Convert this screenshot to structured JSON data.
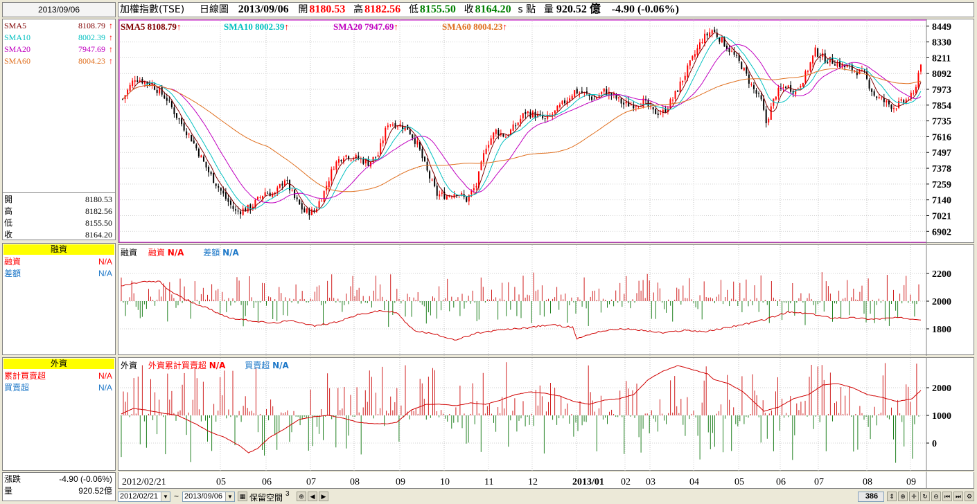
{
  "date_box": "2013/09/06",
  "header": {
    "title": "加權指數(TSE)",
    "period": "日線圖",
    "date": "2013/09/06",
    "open_label": "開",
    "open": "8180.53",
    "high_label": "高",
    "high": "8182.56",
    "low_label": "低",
    "low": "8155.50",
    "close_label": "收",
    "close": "8164.20",
    "unit": "s 點",
    "volume_label": "量",
    "volume": "920.52 億",
    "change": "-4.90 (-0.06%)"
  },
  "sma_legend": [
    {
      "name": "SMA5",
      "value": "8108.79",
      "color": "#800000"
    },
    {
      "name": "SMA10",
      "value": "8002.39",
      "color": "#00c0c0"
    },
    {
      "name": "SMA20",
      "value": "7947.69",
      "color": "#c000c0"
    },
    {
      "name": "SMA60",
      "value": "8004.23",
      "color": "#e07020"
    }
  ],
  "sma_top_labels": [
    {
      "text": "SMA5 8108.79",
      "color": "#800000"
    },
    {
      "text": "SMA10 8002.39",
      "color": "#00c0c0"
    },
    {
      "text": "SMA20 7947.69",
      "color": "#c000c0"
    },
    {
      "text": "SMA60 8004.23",
      "color": "#e07020"
    }
  ],
  "up_arrow": "🡅",
  "ohlc": [
    {
      "label": "開",
      "value": "8180.53"
    },
    {
      "label": "高",
      "value": "8182.56"
    },
    {
      "label": "低",
      "value": "8155.50"
    },
    {
      "label": "收",
      "value": "8164.20"
    }
  ],
  "margin_panel": {
    "title": "融資",
    "rows": [
      {
        "label": "融資",
        "value": "N/A",
        "color": "#ff0000"
      },
      {
        "label": "差額",
        "value": "N/A",
        "color": "#1e78c8"
      }
    ],
    "chart_title": "融資",
    "chart_label1": "融資",
    "chart_label2": "差額",
    "na": "N/A"
  },
  "foreign_panel": {
    "title": "外資",
    "rows": [
      {
        "label": "累計買賣超",
        "value": "N/A",
        "color": "#ff0000"
      },
      {
        "label": "買賣超",
        "value": "N/A",
        "color": "#1e78c8"
      }
    ],
    "chart_title": "外資",
    "chart_label1": "外資累計買賣超",
    "chart_label2": "買賣超",
    "na": "N/A"
  },
  "bottom_info": {
    "change_label": "漲跌",
    "change_value": "-4.90 (-0.06%)",
    "volume_label": "量",
    "volume_value": "920.52億"
  },
  "bottom_bar": {
    "start_date": "2012/02/21",
    "tilde": "~",
    "end_date": "2013/09/06",
    "reserve_label": "保留空間",
    "reserve_value": "3",
    "count": "386"
  },
  "chart_data": [
    {
      "type": "candlestick",
      "name": "price",
      "y_ticks": [
        8449,
        8330,
        8211,
        8092,
        7973,
        7854,
        7735,
        7616,
        7497,
        7378,
        7259,
        7140,
        7021,
        6902
      ],
      "ylim": [
        6820,
        8500
      ],
      "x_tick_labels": [
        "2012/02/21",
        "05",
        "06",
        "07",
        "08",
        "09",
        "10",
        "11",
        "12",
        "2013/01",
        "02",
        "03",
        "04",
        "05",
        "06",
        "07",
        "08",
        "09"
      ],
      "price_anchors": [
        [
          0,
          7900
        ],
        [
          5,
          8060
        ],
        [
          12,
          8010
        ],
        [
          18,
          7900
        ],
        [
          22,
          7770
        ],
        [
          28,
          7600
        ],
        [
          35,
          7350
        ],
        [
          42,
          7150
        ],
        [
          46,
          7050
        ],
        [
          52,
          7080
        ],
        [
          58,
          7200
        ],
        [
          62,
          7180
        ],
        [
          66,
          7300
        ],
        [
          70,
          7150
        ],
        [
          74,
          7050
        ],
        [
          78,
          7050
        ],
        [
          82,
          7200
        ],
        [
          86,
          7400
        ],
        [
          90,
          7480
        ],
        [
          96,
          7450
        ],
        [
          100,
          7420
        ],
        [
          104,
          7480
        ],
        [
          108,
          7720
        ],
        [
          112,
          7710
        ],
        [
          116,
          7680
        ],
        [
          120,
          7560
        ],
        [
          124,
          7350
        ],
        [
          128,
          7180
        ],
        [
          132,
          7170
        ],
        [
          136,
          7200
        ],
        [
          140,
          7140
        ],
        [
          144,
          7250
        ],
        [
          148,
          7550
        ],
        [
          152,
          7660
        ],
        [
          156,
          7620
        ],
        [
          160,
          7700
        ],
        [
          164,
          7800
        ],
        [
          168,
          7780
        ],
        [
          172,
          7740
        ],
        [
          176,
          7800
        ],
        [
          180,
          7880
        ],
        [
          184,
          7960
        ],
        [
          188,
          7940
        ],
        [
          192,
          7900
        ],
        [
          196,
          7960
        ],
        [
          200,
          7920
        ],
        [
          204,
          7860
        ],
        [
          208,
          7860
        ],
        [
          212,
          7880
        ],
        [
          216,
          7800
        ],
        [
          220,
          7800
        ],
        [
          224,
          7900
        ],
        [
          228,
          8050
        ],
        [
          232,
          8200
        ],
        [
          236,
          8350
        ],
        [
          240,
          8420
        ],
        [
          244,
          8340
        ],
        [
          248,
          8250
        ],
        [
          252,
          8150
        ],
        [
          256,
          8000
        ],
        [
          260,
          7880
        ],
        [
          262,
          7720
        ],
        [
          266,
          7940
        ],
        [
          270,
          8000
        ],
        [
          274,
          7960
        ],
        [
          278,
          8080
        ],
        [
          282,
          8260
        ],
        [
          286,
          8200
        ],
        [
          290,
          8180
        ],
        [
          294,
          8140
        ],
        [
          298,
          8120
        ],
        [
          302,
          8080
        ],
        [
          306,
          7930
        ],
        [
          310,
          7880
        ],
        [
          314,
          7840
        ],
        [
          318,
          7880
        ],
        [
          322,
          7930
        ],
        [
          325,
          8180
        ]
      ],
      "sma_last": {
        "SMA5": 8108.79,
        "SMA10": 8002.39,
        "SMA20": 7947.69,
        "SMA60": 8004.23
      }
    },
    {
      "type": "bar+line",
      "name": "margin",
      "y_ticks": [
        2200,
        2000,
        1800
      ],
      "line_anchors": [
        [
          0,
          2110
        ],
        [
          10,
          2140
        ],
        [
          18,
          2140
        ],
        [
          22,
          2080
        ],
        [
          30,
          2010
        ],
        [
          40,
          1950
        ],
        [
          50,
          1880
        ],
        [
          60,
          1860
        ],
        [
          70,
          1840
        ],
        [
          80,
          1860
        ],
        [
          90,
          1820
        ],
        [
          100,
          1850
        ],
        [
          110,
          1900
        ],
        [
          120,
          1930
        ],
        [
          128,
          1920
        ],
        [
          132,
          1850
        ],
        [
          136,
          1790
        ],
        [
          146,
          1760
        ],
        [
          156,
          1720
        ],
        [
          166,
          1770
        ],
        [
          176,
          1790
        ],
        [
          190,
          1810
        ],
        [
          200,
          1830
        ],
        [
          210,
          1810
        ],
        [
          212,
          1730
        ],
        [
          222,
          1780
        ],
        [
          232,
          1800
        ],
        [
          242,
          1790
        ],
        [
          252,
          1770
        ],
        [
          262,
          1790
        ],
        [
          272,
          1780
        ],
        [
          282,
          1810
        ],
        [
          292,
          1840
        ],
        [
          300,
          1870
        ],
        [
          310,
          1920
        ],
        [
          320,
          1910
        ],
        [
          330,
          1880
        ],
        [
          340,
          1880
        ],
        [
          350,
          1870
        ],
        [
          360,
          1880
        ],
        [
          372,
          1870
        ]
      ]
    },
    {
      "type": "bar+line",
      "name": "foreign",
      "y_ticks": [
        2000,
        1000,
        0
      ],
      "line_anchors": [
        [
          0,
          1050
        ],
        [
          8,
          1250
        ],
        [
          16,
          1200
        ],
        [
          26,
          1100
        ],
        [
          38,
          1000
        ],
        [
          50,
          700
        ],
        [
          60,
          400
        ],
        [
          70,
          200
        ],
        [
          80,
          -100
        ],
        [
          86,
          -350
        ],
        [
          92,
          -200
        ],
        [
          100,
          200
        ],
        [
          110,
          500
        ],
        [
          120,
          850
        ],
        [
          130,
          950
        ],
        [
          140,
          1000
        ],
        [
          150,
          900
        ],
        [
          160,
          750
        ],
        [
          170,
          700
        ],
        [
          180,
          700
        ],
        [
          186,
          750
        ],
        [
          196,
          1200
        ],
        [
          206,
          1400
        ],
        [
          216,
          1400
        ],
        [
          226,
          1350
        ],
        [
          236,
          1450
        ],
        [
          246,
          1400
        ],
        [
          256,
          1550
        ],
        [
          266,
          1750
        ],
        [
          276,
          1850
        ],
        [
          286,
          1800
        ],
        [
          296,
          1700
        ],
        [
          306,
          1500
        ],
        [
          316,
          1400
        ],
        [
          326,
          1550
        ],
        [
          336,
          1600
        ],
        [
          346,
          1750
        ],
        [
          356,
          2300
        ],
        [
          366,
          2600
        ],
        [
          376,
          2800
        ],
        [
          386,
          2650
        ],
        [
          396,
          2500
        ],
        [
          400,
          2300
        ],
        [
          410,
          2150
        ],
        [
          420,
          1850
        ],
        [
          430,
          1350
        ],
        [
          434,
          1150
        ],
        [
          444,
          1300
        ],
        [
          454,
          1600
        ],
        [
          464,
          1750
        ],
        [
          474,
          2100
        ],
        [
          484,
          2150
        ],
        [
          494,
          2000
        ],
        [
          504,
          1750
        ],
        [
          514,
          1650
        ],
        [
          524,
          1500
        ],
        [
          534,
          1600
        ],
        [
          540,
          1900
        ]
      ]
    }
  ]
}
